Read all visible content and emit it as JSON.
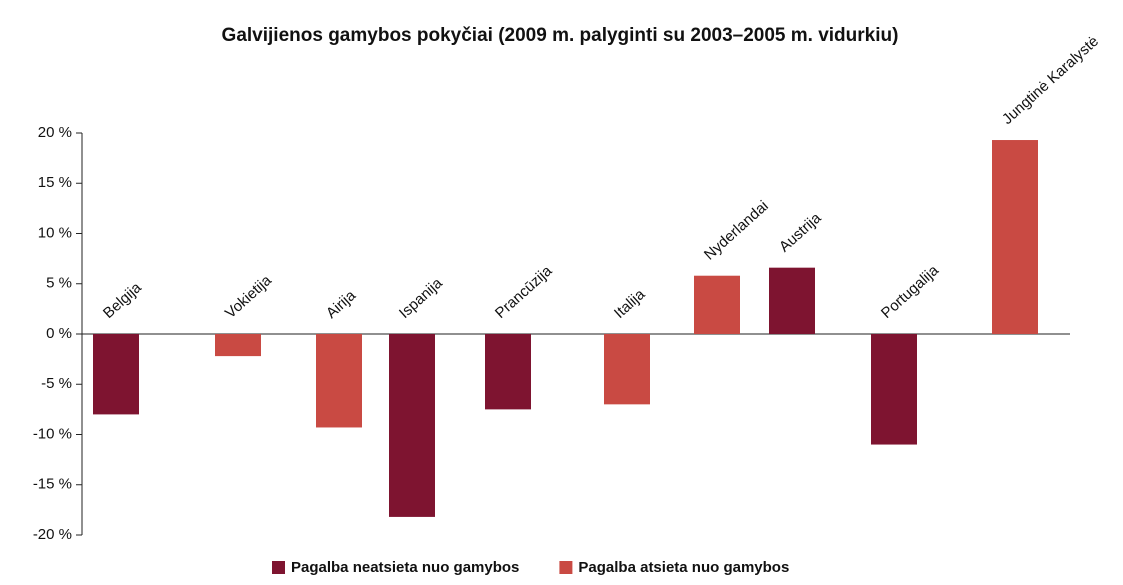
{
  "chart_data": {
    "type": "bar",
    "title": "Galvijienos gamybos pokyčiai (2009 m. palyginti su 2003–2005 m. vidurkiu)",
    "categories": [
      "Belgija",
      "Vokietija",
      "Airija",
      "Ispanija",
      "Prancūzija",
      "Italija",
      "Nyderlandai",
      "Austrija",
      "Portugalija",
      "Jungtinė Karalystė"
    ],
    "series": [
      {
        "name": "Pagalba neatsieta nuo gamybos",
        "color": "#7e1430",
        "values": [
          -8,
          null,
          null,
          -18.2,
          -7.5,
          null,
          null,
          6.6,
          -11,
          null
        ]
      },
      {
        "name": "Pagalba atsieta nuo gamybos",
        "color": "#c94a43",
        "values": [
          null,
          -2.2,
          -9.3,
          null,
          null,
          -7,
          5.8,
          null,
          null,
          19.3
        ]
      }
    ],
    "ylim": [
      -20,
      20
    ],
    "yticks": [
      {
        "value": -20,
        "label": "-20 %"
      },
      {
        "value": -15,
        "label": "-15 %"
      },
      {
        "value": -10,
        "label": "-10 %"
      },
      {
        "value": -5,
        "label": "-5 %"
      },
      {
        "value": 0,
        "label": "0 %"
      },
      {
        "value": 5,
        "label": "5 %"
      },
      {
        "value": 10,
        "label": "10 %"
      },
      {
        "value": 15,
        "label": "15 %"
      },
      {
        "value": 20,
        "label": "20 %"
      }
    ],
    "legend": "bottom"
  }
}
